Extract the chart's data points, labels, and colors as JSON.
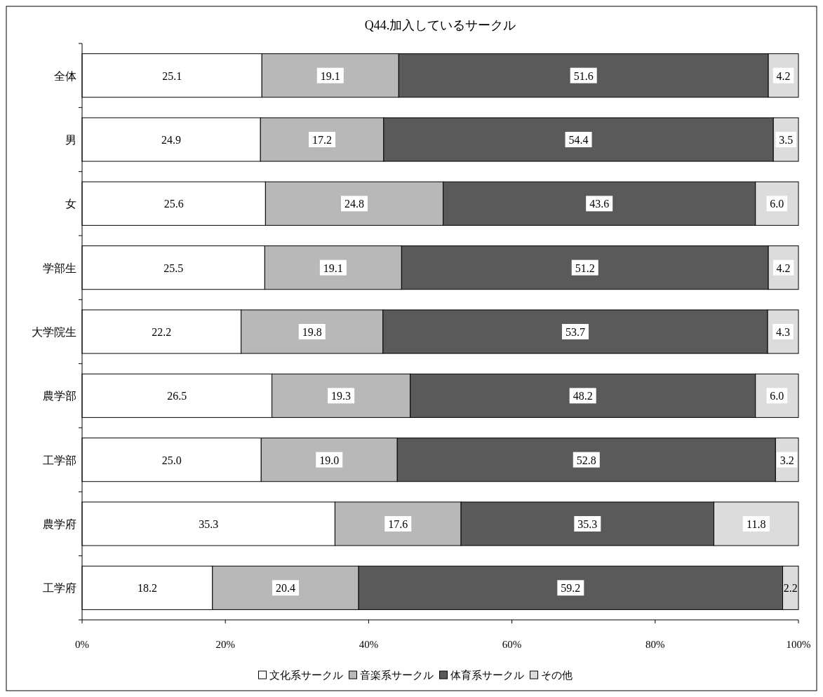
{
  "chart_data": {
    "type": "bar",
    "orientation": "horizontal",
    "stacked": true,
    "title": "Q44.加入しているサークル",
    "categories": [
      "全体",
      "男",
      "女",
      "学部生",
      "大学院生",
      "農学部",
      "工学部",
      "農学府",
      "工学府"
    ],
    "series": [
      {
        "name": "文化系サークル",
        "color": "#ffffff",
        "values": [
          25.1,
          24.9,
          25.6,
          25.5,
          22.2,
          26.5,
          25.0,
          35.3,
          18.2
        ],
        "value_labels": [
          "25.1",
          "24.9",
          "25.6",
          "25.5",
          "22.2",
          "26.5",
          "25.0",
          "35.3",
          "18.2"
        ]
      },
      {
        "name": "音楽系サークル",
        "color": "#b8b8b8",
        "values": [
          19.1,
          17.2,
          24.8,
          19.1,
          19.8,
          19.3,
          19.0,
          17.6,
          20.4
        ],
        "value_labels": [
          "19.1",
          "17.2",
          "24.8",
          "19.1",
          "19.8",
          "19.3",
          "19.0",
          "17.6",
          "20.4"
        ]
      },
      {
        "name": "体育系サークル",
        "color": "#5a5a5a",
        "values": [
          51.6,
          54.4,
          43.6,
          51.2,
          53.7,
          48.2,
          52.8,
          35.3,
          59.2
        ],
        "value_labels": [
          "51.6",
          "54.4",
          "43.6",
          "51.2",
          "53.7",
          "48.2",
          "52.8",
          "35.3",
          "59.2"
        ]
      },
      {
        "name": "その他",
        "color": "#dcdcdc",
        "values": [
          4.2,
          3.5,
          6.0,
          4.2,
          4.3,
          6.0,
          3.2,
          11.8,
          2.2
        ],
        "value_labels": [
          "4.2",
          "3.5",
          "6.0",
          "4.2",
          "4.3",
          "6.0",
          "3.2",
          "11.8",
          "2.2"
        ]
      }
    ],
    "xlim": [
      0,
      100
    ],
    "xticks": [
      {
        "value": 0,
        "label": "0%"
      },
      {
        "value": 20,
        "label": "20%"
      },
      {
        "value": 40,
        "label": "40%"
      },
      {
        "value": 60,
        "label": "60%"
      },
      {
        "value": 80,
        "label": "80%"
      },
      {
        "value": 100,
        "label": "100%"
      }
    ],
    "legend": "bottom",
    "grid": false
  }
}
